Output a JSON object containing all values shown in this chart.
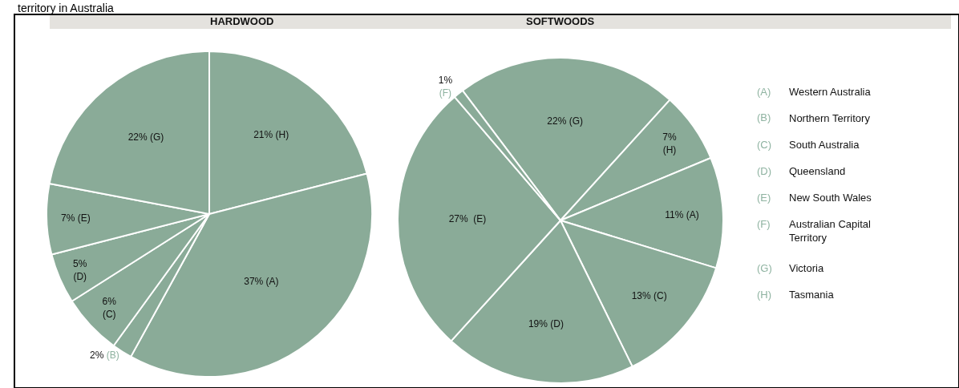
{
  "chart_data": [
    {
      "type": "pie",
      "title": "HARDWOOD",
      "annotations": [
        "territory in Australia"
      ],
      "categories": [
        null,
        null,
        null,
        null,
        null,
        null,
        null
      ],
      "values": [
        21,
        37,
        2,
        6,
        5,
        7,
        22
      ],
      "colors": [
        "#8aab98",
        "#8aab98",
        "#8aab98",
        "#8aab98",
        "#8aab98",
        "#8aab98",
        "#8aab98"
      ],
      "value_labels": [
        "21% (H)",
        "37% (A)",
        "2% (B)",
        "6%\n(C)",
        "5%\n(D)",
        "7% (E)",
        "22% (G)"
      ]
    },
    {
      "type": "pie",
      "title": "SOFTWOODS",
      "categories": [
        null,
        null,
        null,
        null,
        null,
        null,
        null
      ],
      "values": [
        22,
        7,
        11,
        13,
        19,
        27,
        1
      ],
      "colors": [
        "#8aab98",
        "#8aab98",
        "#8aab98",
        "#8aab98",
        "#8aab98",
        "#8aab98",
        "#8aab98"
      ],
      "value_labels": [
        "22% (G)",
        "7%\n(H)",
        "11% (A)",
        "13% (C)",
        "19% (D)",
        "27%  (E)",
        "1%\n(F)"
      ]
    },
    {
      "type": "other",
      "annotations": [
        "(A) Western Australia",
        "(B) Northern Territory",
        "(C) South Australia",
        "(D) Queensland",
        "(E) New South Wales",
        "(F) Australian Capital\nTerritory",
        "(G) Victoria",
        "(H) Tasmania"
      ]
    }
  ]
}
